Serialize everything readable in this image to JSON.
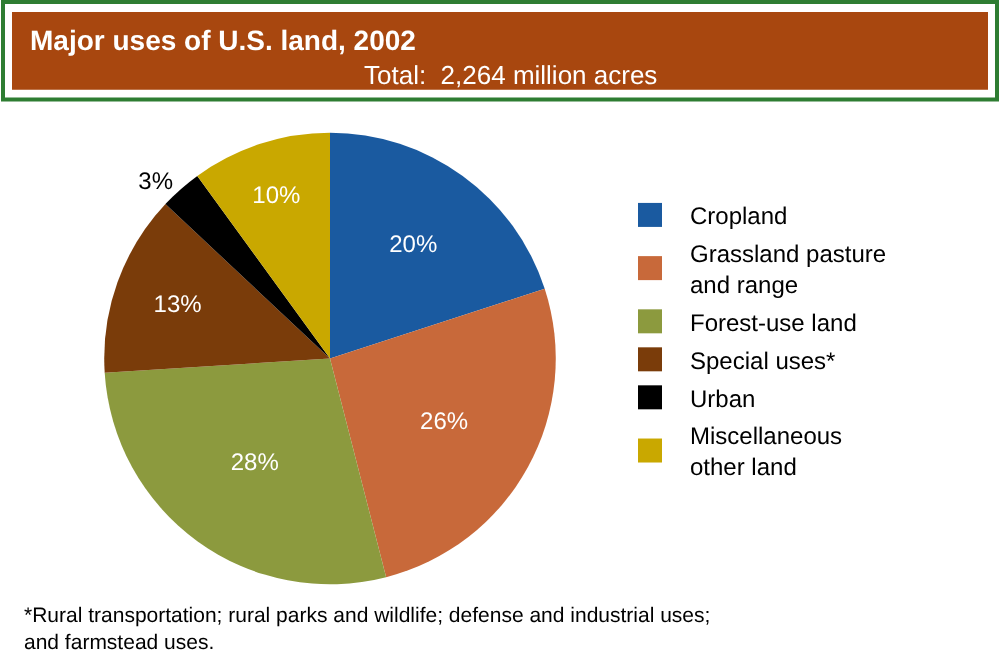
{
  "chart_data": {
    "type": "pie",
    "title": "Major uses of U.S. land, 2002",
    "subtitle": "Total:  2,264 million acres",
    "categories": [
      "Cropland",
      "Grassland pasture and range",
      "Forest-use land",
      "Special uses*",
      "Urban",
      "Miscellaneous other land"
    ],
    "values": [
      20,
      26,
      28,
      13,
      3,
      10
    ],
    "colors": [
      "#1a5aa0",
      "#c8693a",
      "#8c9a3e",
      "#7a3c0a",
      "#000000",
      "#c9a800"
    ],
    "value_labels": [
      "20%",
      "26%",
      "28%",
      "13%",
      "3%",
      "10%"
    ],
    "legend": "right",
    "annotations": [
      "*Rural transportation; rural parks and wildlife; defense and industrial uses; and farmstead uses."
    ]
  }
}
